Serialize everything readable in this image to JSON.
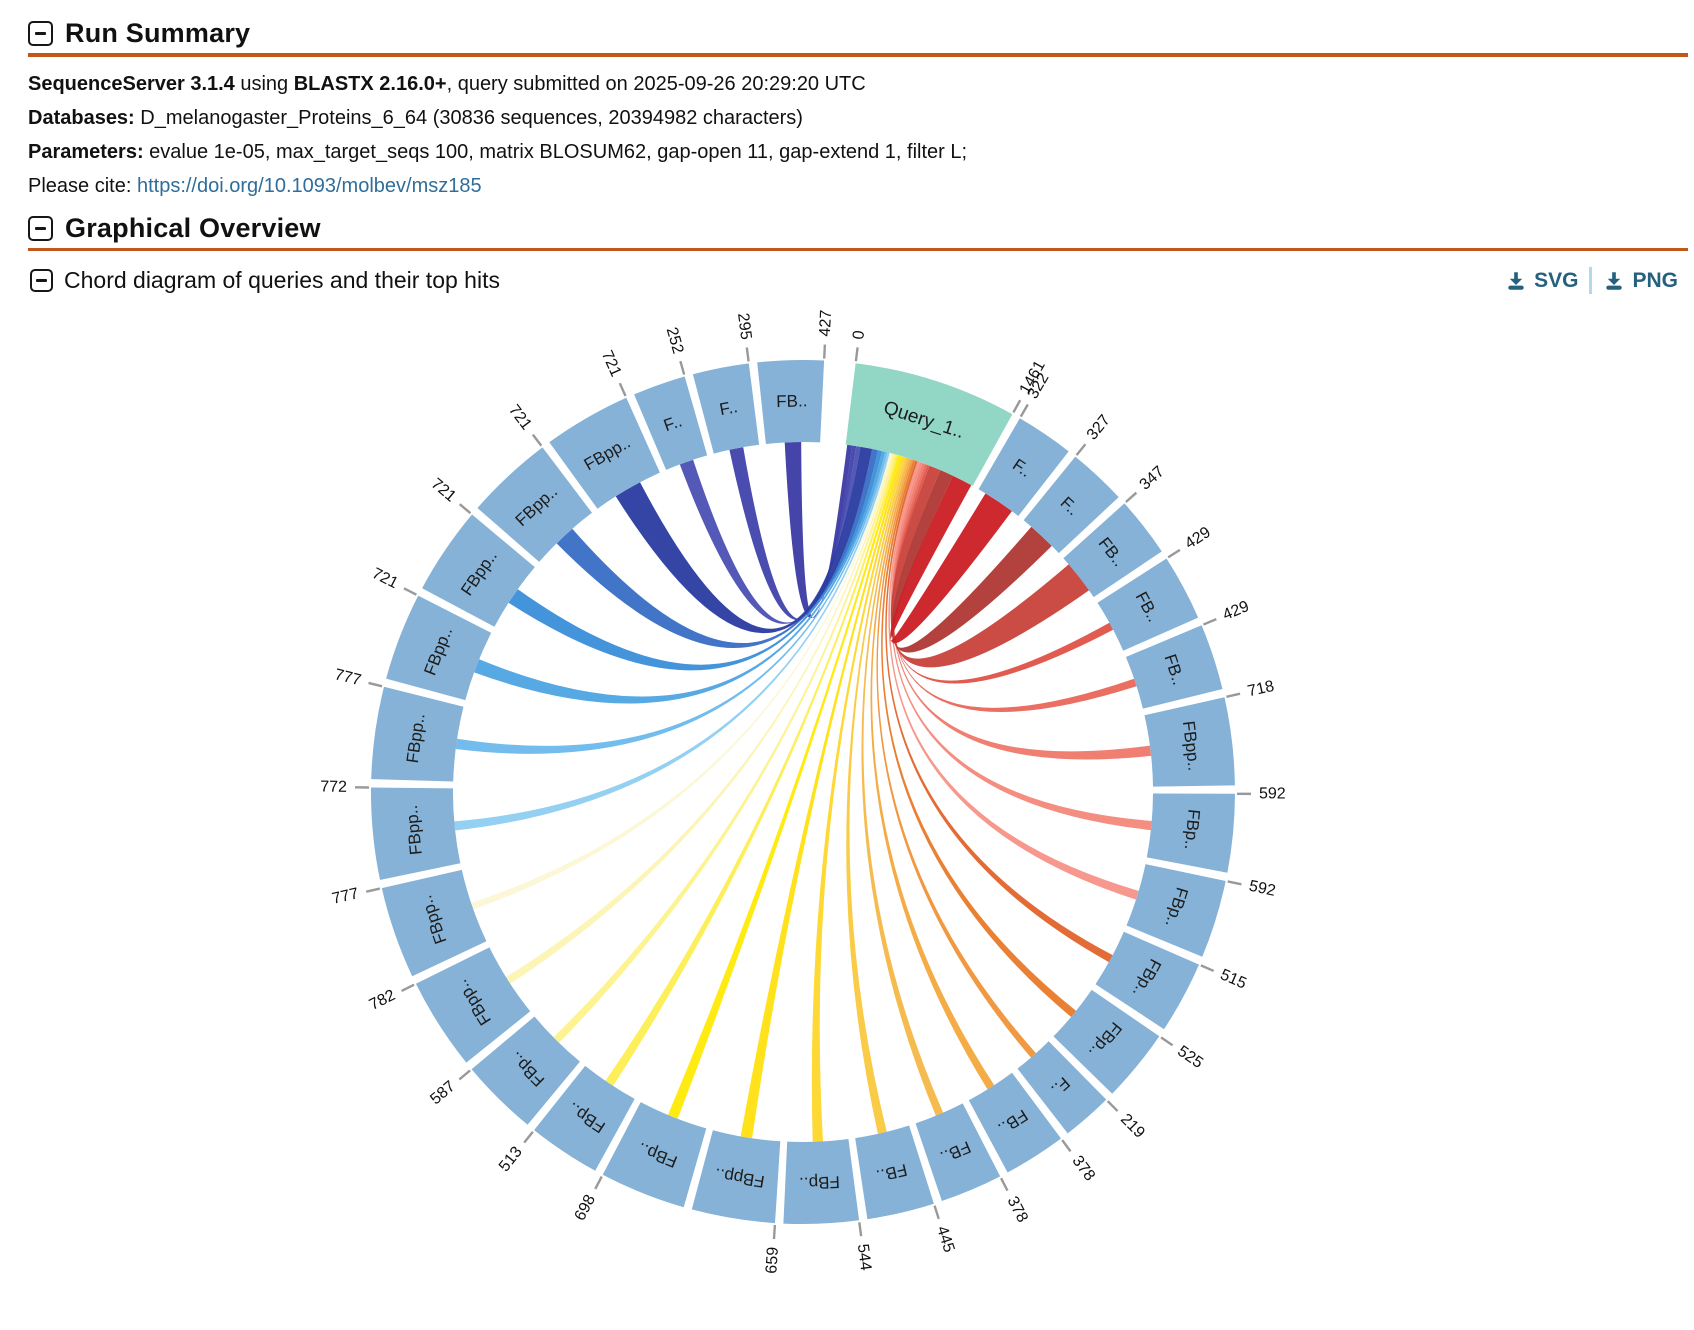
{
  "run_summary": {
    "title": "Run Summary",
    "program": "SequenceServer 3.1.4",
    "using_text": " using ",
    "blast_version": "BLASTX 2.16.0+",
    "submitted_text": ", query submitted on 2025-09-26 20:29:20 UTC",
    "databases_label": "Databases:",
    "databases_value": " D_melanogaster_Proteins_6_64 (30836 sequences, 20394982 characters)",
    "parameters_label": "Parameters:",
    "parameters_value": " evalue 1e-05, max_target_seqs 100, matrix BLOSUM62, gap-open 11, gap-extend 1, filter L;",
    "cite_label": "Please cite: ",
    "cite_url": "https://doi.org/10.1093/molbev/msz185"
  },
  "graphical_overview": {
    "title": "Graphical Overview"
  },
  "chord_panel": {
    "title": "Chord diagram of queries and their top hits",
    "download_svg_label": "SVG",
    "download_png_label": "PNG"
  },
  "theme": {
    "rule_color": "#c2571c",
    "link_color": "#2f6e9b",
    "download_color": "#26607f",
    "heading_color": "#111111"
  },
  "chart_data": {
    "type": "chord",
    "query": {
      "label": "Query_1..",
      "length": 1461,
      "start_tick": "0",
      "end_tick": "1461",
      "color": "#92d7c6",
      "text_color": "#1c1c1c"
    },
    "hit_arc_color": "#85b2d6",
    "tick_color": "#999999",
    "hits": [
      {
        "label": "F..",
        "length": 322,
        "chord": "#cb2026",
        "qw": 4.5,
        "hw": 5.2
      },
      {
        "label": "F..",
        "length": 327,
        "chord": "#b03a36",
        "qw": 3.0,
        "hw": 4.6
      },
      {
        "label": "FB..",
        "length": 347,
        "chord": "#c9453d",
        "qw": 2.5,
        "hw": 5.4
      },
      {
        "label": "FB..",
        "length": 429,
        "chord": "#e0544a",
        "qw": 0.55,
        "hw": 1.3
      },
      {
        "label": "FB..",
        "length": 429,
        "chord": "#e9695c",
        "qw": 0.55,
        "hw": 1.3
      },
      {
        "label": "FBpp..",
        "length": 718,
        "chord": "#ef7a6c",
        "qw": 0.55,
        "hw": 1.7
      },
      {
        "label": "FBp..",
        "length": 592,
        "chord": "#f4897b",
        "qw": 0.55,
        "hw": 1.5
      },
      {
        "label": "FBp..",
        "length": 592,
        "chord": "#f79489",
        "qw": 0.55,
        "hw": 1.5
      },
      {
        "label": "FBp..",
        "length": 515,
        "chord": "#e2662e",
        "qw": 0.5,
        "hw": 1.3
      },
      {
        "label": "FBp..",
        "length": 525,
        "chord": "#e97b2b",
        "qw": 0.5,
        "hw": 1.3
      },
      {
        "label": "F..",
        "length": 219,
        "chord": "#f0953a",
        "qw": 0.45,
        "hw": 1.1
      },
      {
        "label": "FB..",
        "length": 378,
        "chord": "#f4a940",
        "qw": 0.45,
        "hw": 1.3
      },
      {
        "label": "FB..",
        "length": 378,
        "chord": "#f6b848",
        "qw": 0.45,
        "hw": 1.3
      },
      {
        "label": "FB..",
        "length": 445,
        "chord": "#fac93e",
        "qw": 0.45,
        "hw": 1.5
      },
      {
        "label": "FBp..",
        "length": 544,
        "chord": "#fed62c",
        "qw": 0.55,
        "hw": 1.7
      },
      {
        "label": "FBpp..",
        "length": 659,
        "chord": "#ffe112",
        "qw": 0.55,
        "hw": 1.9
      },
      {
        "label": "FBp..",
        "length": 698,
        "chord": "#ffe908",
        "qw": 0.55,
        "hw": 1.7
      },
      {
        "label": "FBp..",
        "length": 513,
        "chord": "#fdee52",
        "qw": 0.55,
        "hw": 1.5
      },
      {
        "label": "FBp..",
        "length": 587,
        "chord": "#fdf28e",
        "qw": 0.55,
        "hw": 1.3
      },
      {
        "label": "FBpp..",
        "length": 782,
        "chord": "#fcf5b4",
        "qw": 0.4,
        "hw": 1.3
      },
      {
        "label": "FBpp..",
        "length": 777,
        "chord": "#fbf7d5",
        "qw": 0.4,
        "hw": 1.1
      },
      {
        "label": "FBpp..",
        "length": 772,
        "chord": "#8fcef0",
        "qw": 0.5,
        "hw": 1.5
      },
      {
        "label": "FBpp..",
        "length": 777,
        "chord": "#6cbaec",
        "qw": 0.5,
        "hw": 1.7
      },
      {
        "label": "FBpp..",
        "length": 721,
        "chord": "#50a5e3",
        "qw": 0.7,
        "hw": 2.3
      },
      {
        "label": "FBpp..",
        "length": 721,
        "chord": "#3c90da",
        "qw": 0.9,
        "hw": 2.7
      },
      {
        "label": "FBpp..",
        "length": 721,
        "chord": "#3a6fc6",
        "qw": 1.3,
        "hw": 3.5
      },
      {
        "label": "FBpp..",
        "length": 721,
        "chord": "#2c3da2",
        "qw": 2.6,
        "hw": 4.6
      },
      {
        "label": "F..",
        "length": 252,
        "chord": "#4d52b4",
        "qw": 0.9,
        "hw": 2.3
      },
      {
        "label": "F..",
        "length": 295,
        "chord": "#4345ac",
        "qw": 0.9,
        "hw": 2.3
      },
      {
        "label": "FB..",
        "length": 427,
        "chord": "#3c3ca6",
        "qw": 1.1,
        "hw": 2.7
      }
    ],
    "draw_order": [
      19,
      20,
      21,
      28,
      29,
      30,
      22,
      23,
      24,
      25,
      26,
      18,
      17,
      16,
      15,
      14,
      13,
      12,
      11,
      10,
      9,
      8,
      7,
      6,
      5,
      4,
      27,
      3,
      2,
      1
    ]
  }
}
